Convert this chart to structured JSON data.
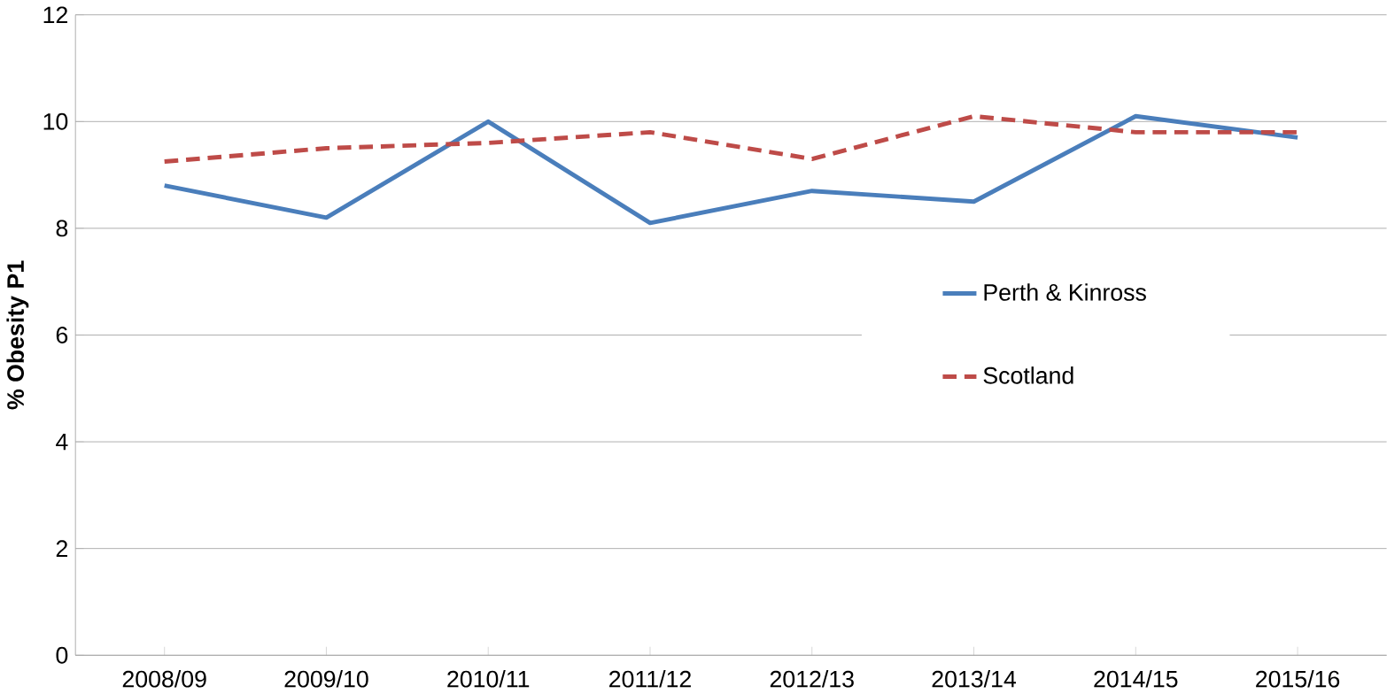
{
  "chart_data": {
    "type": "line",
    "ylabel": "**% Obesity P1**",
    "categories": [
      "2008/09",
      "2009/10",
      "2010/11",
      "2011/12",
      "2012/13",
      "2013/14",
      "2014/15",
      "2015/16"
    ],
    "series": [
      {
        "name": "Perth & Kinross",
        "color": "#4a7ebb",
        "line_style": "solid",
        "values": [
          8.8,
          8.2,
          10.0,
          8.1,
          8.7,
          8.5,
          10.1,
          9.7
        ]
      },
      {
        "name": "Scotland",
        "color": "#be4b48",
        "line_style": "dashed",
        "values": [
          9.25,
          9.5,
          9.6,
          9.8,
          9.3,
          10.1,
          9.8,
          9.8
        ]
      }
    ],
    "ylim": [
      0,
      12
    ],
    "yticks": [
      0,
      2,
      4,
      6,
      8,
      10,
      12
    ],
    "grid": "y",
    "legend": "right",
    "marker": "none"
  }
}
